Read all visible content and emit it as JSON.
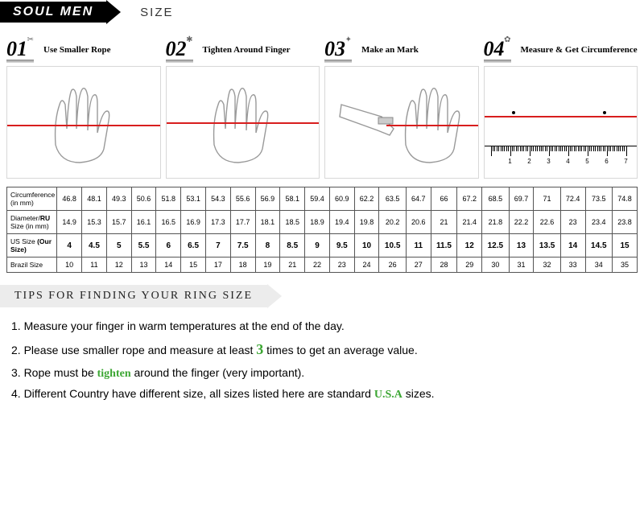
{
  "brand": "SOUL MEN",
  "size_label": "SIZE",
  "steps": [
    {
      "num": "01",
      "deco": "✂",
      "label": "Use Smaller Rope"
    },
    {
      "num": "02",
      "deco": "✱",
      "label": "Tighten Around Finger"
    },
    {
      "num": "03",
      "deco": "✦",
      "label": "Make an Mark"
    },
    {
      "num": "04",
      "deco": "✿",
      "label": "Measure & Get Circumference"
    }
  ],
  "ruler": {
    "labels": [
      "1",
      "2",
      "3",
      "4",
      "5",
      "6",
      "7"
    ]
  },
  "table": {
    "rows": [
      {
        "header": "Circumference (in mm)",
        "cells": [
          "46.8",
          "48.1",
          "49.3",
          "50.6",
          "51.8",
          "53.1",
          "54.3",
          "55.6",
          "56.9",
          "58.1",
          "59.4",
          "60.9",
          "62.2",
          "63.5",
          "64.7",
          "66",
          "67.2",
          "68.5",
          "69.7",
          "71",
          "72.4",
          "73.5",
          "74.8"
        ]
      },
      {
        "header": "Diameter/RU Size (in mm)",
        "cells": [
          "14.9",
          "15.3",
          "15.7",
          "16.1",
          "16.5",
          "16.9",
          "17.3",
          "17.7",
          "18.1",
          "18.5",
          "18.9",
          "19.4",
          "19.8",
          "20.2",
          "20.6",
          "21",
          "21.4",
          "21.8",
          "22.2",
          "22.6",
          "23",
          "23.4",
          "23.8"
        ]
      },
      {
        "header": "US Size (Our Size)",
        "cells": [
          "4",
          "4.5",
          "5",
          "5.5",
          "6",
          "6.5",
          "7",
          "7.5",
          "8",
          "8.5",
          "9",
          "9.5",
          "10",
          "10.5",
          "11",
          "11.5",
          "12",
          "12.5",
          "13",
          "13.5",
          "14",
          "14.5",
          "15"
        ],
        "our": true
      },
      {
        "header": "Brazil Size",
        "cells": [
          "10",
          "11",
          "12",
          "13",
          "14",
          "15",
          "17",
          "18",
          "19",
          "21",
          "22",
          "23",
          "24",
          "26",
          "27",
          "28",
          "29",
          "30",
          "31",
          "32",
          "33",
          "34",
          "35"
        ]
      }
    ]
  },
  "tips_title": "TIPS FOR FINDING YOUR RING SIZE",
  "tips": {
    "t1a": "1. Measure your finger in warm temperatures at the end of the day.",
    "t2a": "2. Please use smaller rope and measure at least ",
    "t2b": "3",
    "t2c": " times to get an average value.",
    "t3a": "3. Rope must be ",
    "t3b": "tighten",
    "t3c": " around the finger (very important).",
    "t4a": "4. Different Country have different size, all sizes listed here are standard ",
    "t4b": "U.S.A",
    "t4c": " sizes."
  },
  "colors": {
    "accent_red": "#d81e1e",
    "accent_green": "#3ca633"
  }
}
